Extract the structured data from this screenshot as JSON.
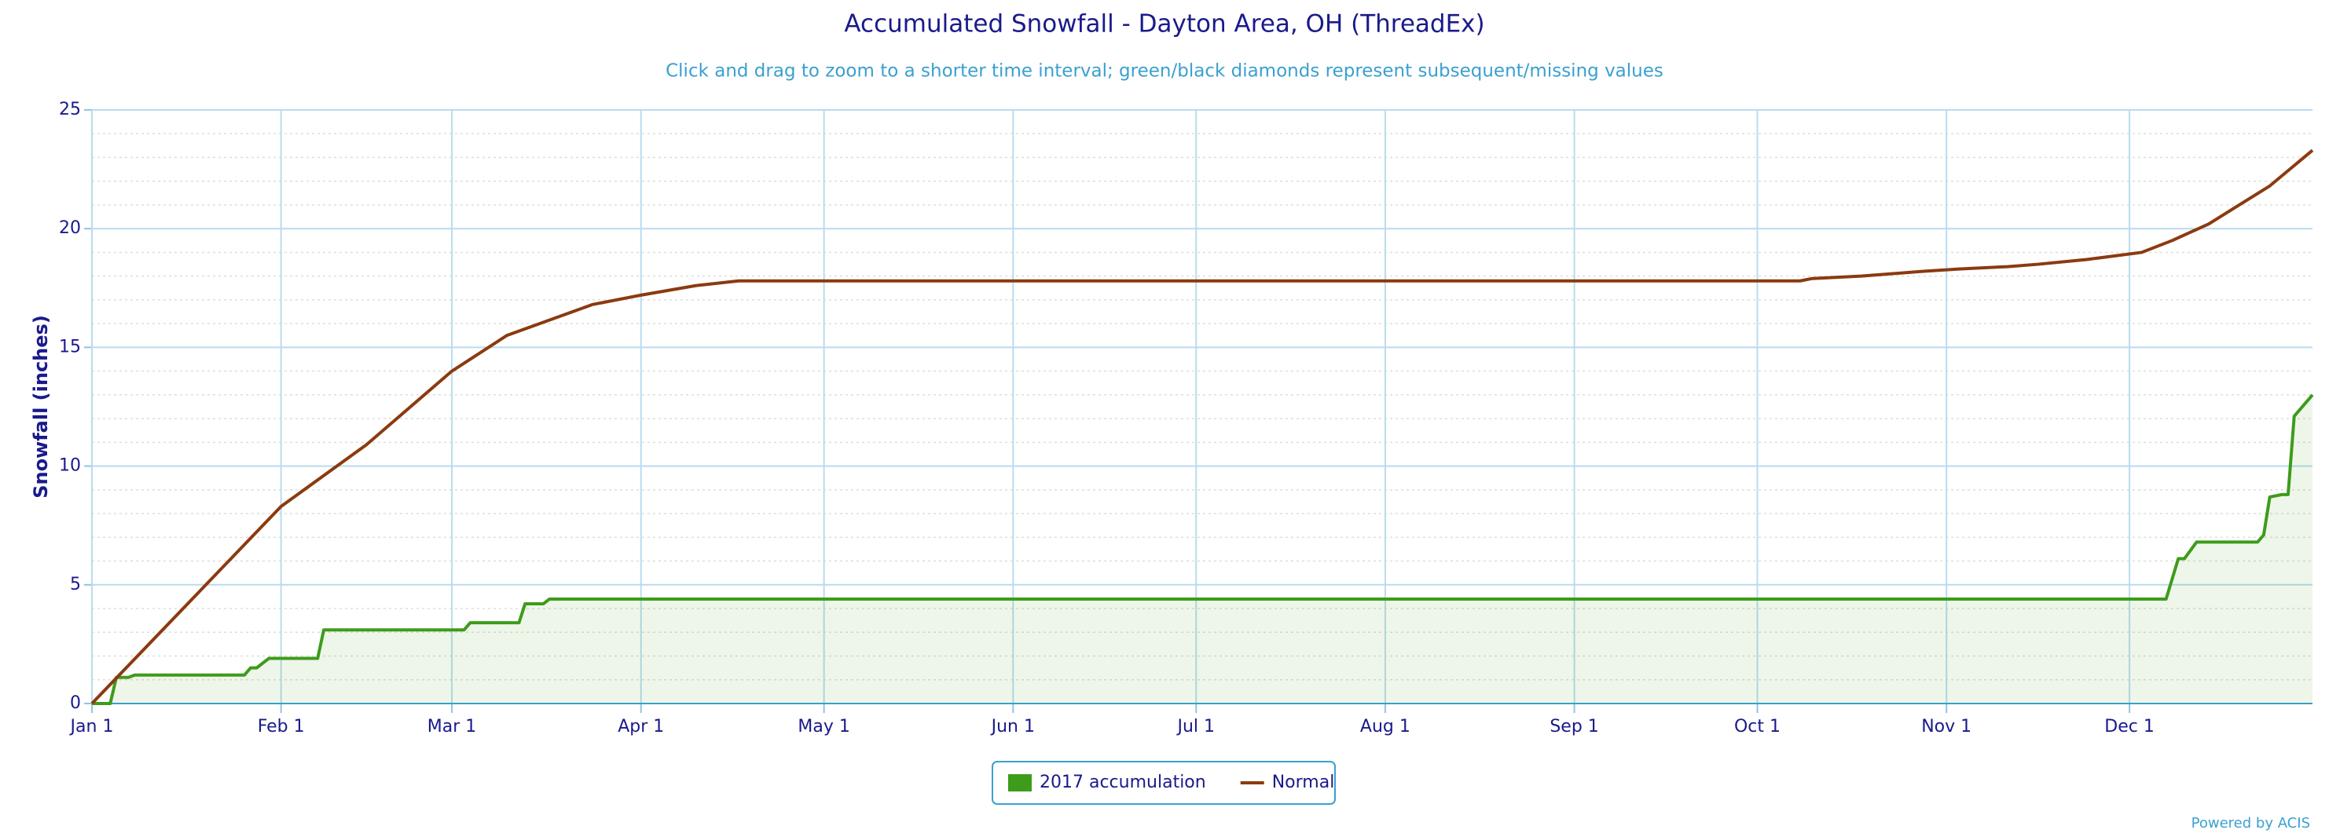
{
  "chart_data": {
    "type": "line",
    "title": "Accumulated Snowfall - Dayton Area, OH (ThreadEx)",
    "subtitle": "Click and drag to zoom to a shorter time interval; green/black diamonds represent subsequent/missing values",
    "y_label": "Snowfall (inches)",
    "credit": "Powered by ACIS",
    "xlim": [
      0,
      364
    ],
    "xticks": [
      {
        "value": 0,
        "label": "Jan 1"
      },
      {
        "value": 31,
        "label": "Feb 1"
      },
      {
        "value": 59,
        "label": "Mar 1"
      },
      {
        "value": 90,
        "label": "Apr 1"
      },
      {
        "value": 120,
        "label": "May 1"
      },
      {
        "value": 151,
        "label": "Jun 1"
      },
      {
        "value": 181,
        "label": "Jul 1"
      },
      {
        "value": 212,
        "label": "Aug 1"
      },
      {
        "value": 243,
        "label": "Sep 1"
      },
      {
        "value": 273,
        "label": "Oct 1"
      },
      {
        "value": 304,
        "label": "Nov 1"
      },
      {
        "value": 334,
        "label": "Dec 1"
      }
    ],
    "ylim": [
      0,
      25
    ],
    "yticks": [
      0,
      5,
      10,
      15,
      20,
      25
    ],
    "yminorticks": [
      1,
      2,
      3,
      4,
      6,
      7,
      8,
      9,
      11,
      12,
      13,
      14,
      16,
      17,
      18,
      19,
      21,
      22,
      23,
      24
    ],
    "grid": true,
    "legend": "bottom",
    "series": [
      {
        "name": "2017 accumulation",
        "color": "#3d9c1a",
        "area": true,
        "x": [
          0,
          3,
          4,
          6,
          7,
          25,
          26,
          27,
          29,
          37,
          38,
          61,
          62,
          70,
          71,
          74,
          75,
          340,
          342,
          343,
          345,
          355,
          356,
          357,
          359,
          360,
          361,
          364
        ],
        "values": [
          0,
          0,
          1.1,
          1.1,
          1.2,
          1.2,
          1.5,
          1.5,
          1.9,
          1.9,
          3.1,
          3.1,
          3.4,
          3.4,
          4.2,
          4.2,
          4.4,
          4.4,
          6.1,
          6.1,
          6.8,
          6.8,
          7.1,
          8.7,
          8.8,
          8.8,
          12.1,
          13.0
        ]
      },
      {
        "name": "Normal",
        "color": "#8b3a0f",
        "area": false,
        "x": [
          0,
          31,
          45,
          59,
          68,
          82,
          90,
          99,
          106,
          280,
          282,
          290,
          300,
          306,
          314,
          319,
          327,
          336,
          341,
          347,
          352,
          357,
          364
        ],
        "values": [
          0,
          8.3,
          10.9,
          14.0,
          15.5,
          16.8,
          17.2,
          17.6,
          17.8,
          17.8,
          17.9,
          18.0,
          18.2,
          18.3,
          18.4,
          18.5,
          18.7,
          19.0,
          19.5,
          20.2,
          21.0,
          21.8,
          23.3
        ]
      }
    ]
  }
}
